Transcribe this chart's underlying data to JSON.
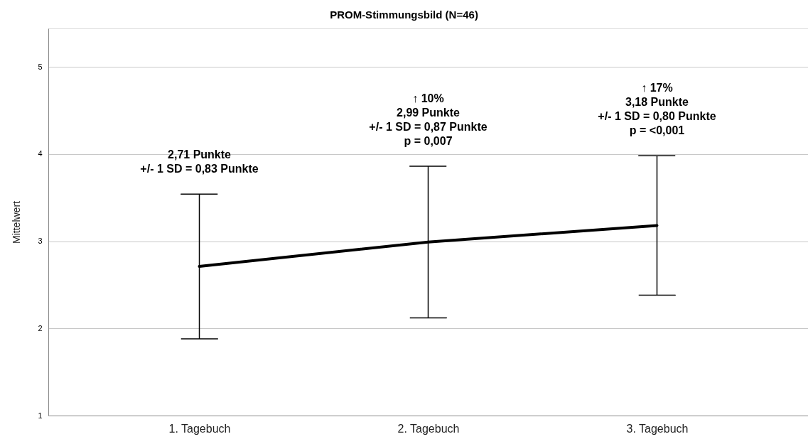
{
  "chart_data": {
    "type": "line",
    "title": "PROM-Stimmungsbild (N=46)",
    "ylabel": "Mittelwert",
    "categories": [
      "1. Tagebuch",
      "2. Tagebuch",
      "3. Tagebuch"
    ],
    "series": [
      {
        "color": "#000000",
        "values": [
          2.71,
          2.99,
          3.18
        ],
        "errors": [
          0.83,
          0.87,
          0.8
        ]
      }
    ],
    "ylim": [
      1,
      5.44
    ],
    "yticks": [
      1,
      2,
      3,
      4,
      5
    ],
    "grid": "y",
    "marker": "none",
    "line_style": "solid",
    "annotations": [
      "2,71 Punkte\n+/- 1 SD = 0,83 Punkte",
      "↑ 10%\n2,99 Punkte\n+/- 1 SD = 0,87 Punkte\np = 0,007",
      "↑ 17%\n3,18 Punkte\n+/- 1 SD = 0,80 Punkte\np = <0,001"
    ]
  }
}
